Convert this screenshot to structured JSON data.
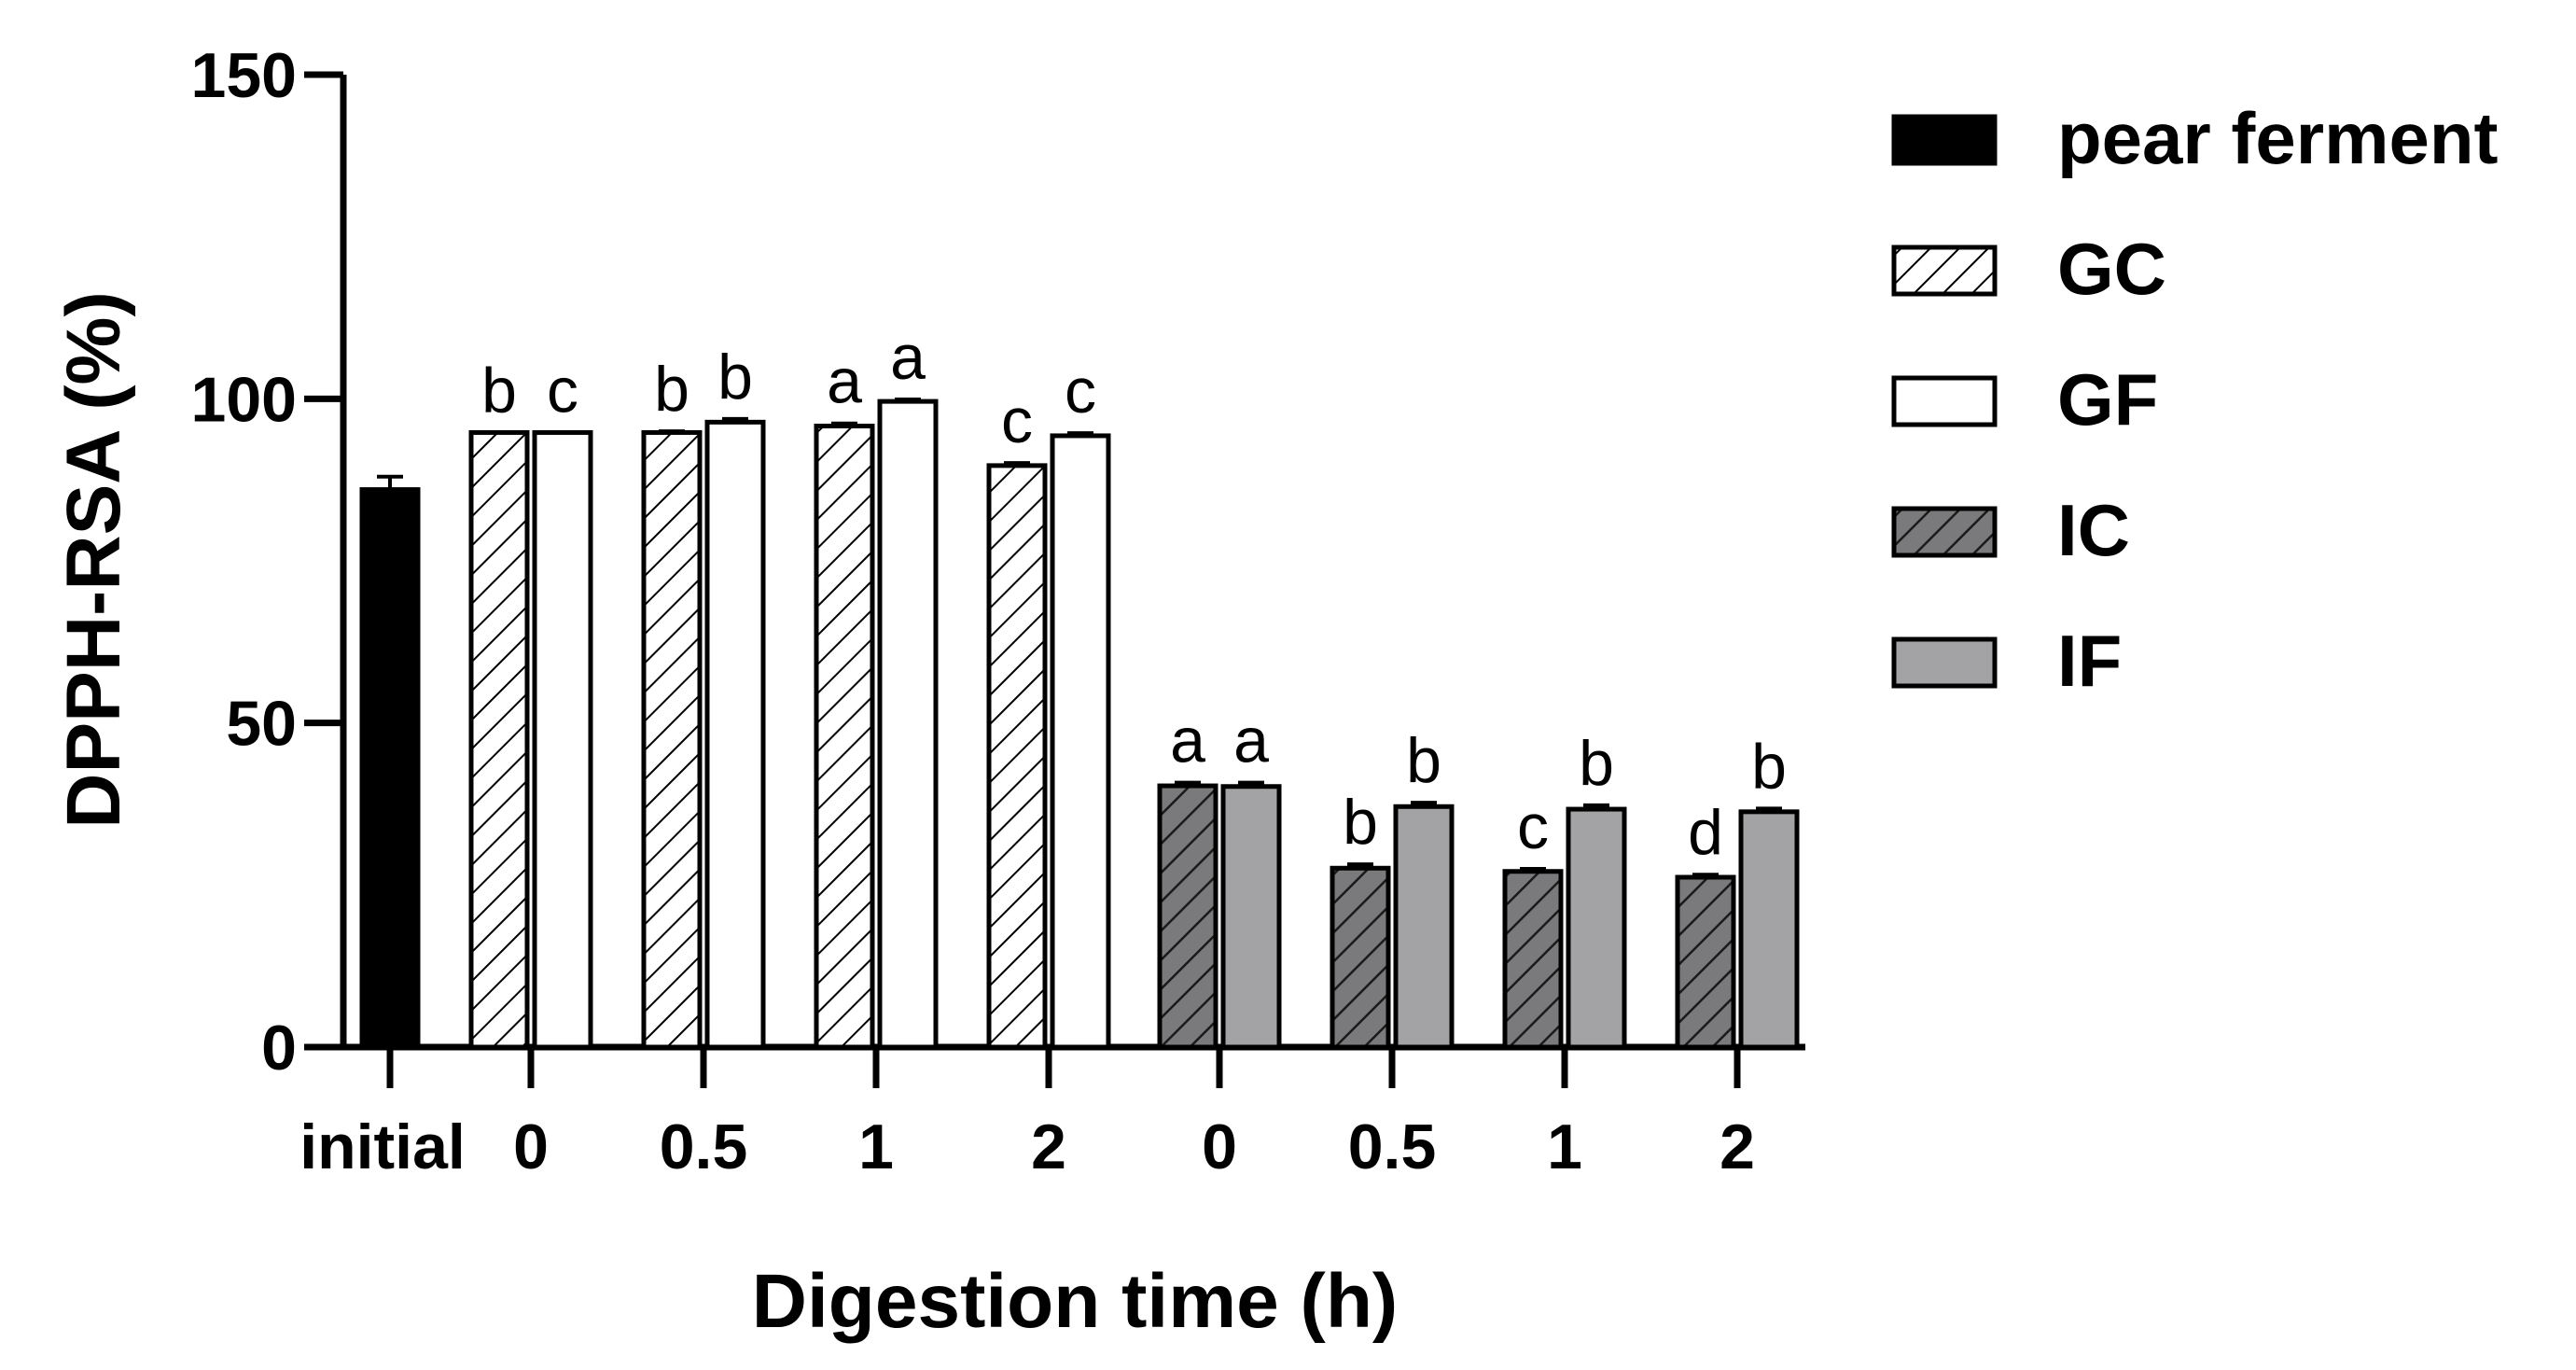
{
  "chart_data": {
    "type": "bar",
    "title": "",
    "xlabel": "Digestion time (h)",
    "ylabel": "DPPH-RSA (%)",
    "ylim": [
      0,
      150
    ],
    "yticks": [
      "0",
      "50",
      "100",
      "150"
    ],
    "categories": [
      "initial",
      "0",
      "0.5",
      "1",
      "2",
      "0",
      "0.5",
      "1",
      "2"
    ],
    "series": [
      {
        "name": "pear ferment",
        "style": "solid-black",
        "values": [
          86,
          null,
          null,
          null,
          null,
          null,
          null,
          null,
          null
        ],
        "errors": [
          2,
          null,
          null,
          null,
          null,
          null,
          null,
          null,
          null
        ],
        "letters": [
          "",
          "",
          "",
          "",
          "",
          "",
          "",
          "",
          ""
        ]
      },
      {
        "name": "GC",
        "style": "hatch-white",
        "values": [
          null,
          94.8,
          94.8,
          95.8,
          89.7,
          null,
          null,
          null,
          null
        ],
        "errors": [
          null,
          0,
          0.2,
          0.4,
          0.4,
          null,
          null,
          null,
          null
        ],
        "letters": [
          "",
          "b",
          "b",
          "a",
          "c",
          "",
          "",
          "",
          ""
        ]
      },
      {
        "name": "GF",
        "style": "plain-white",
        "values": [
          null,
          94.8,
          96.4,
          99.6,
          94.3,
          null,
          null,
          null,
          null
        ],
        "errors": [
          null,
          0,
          0.5,
          0.3,
          0.4,
          null,
          null,
          null,
          null
        ],
        "letters": [
          "",
          "c",
          "b",
          "a",
          "c",
          "",
          "",
          "",
          ""
        ]
      },
      {
        "name": "IC",
        "style": "hatch-gray",
        "values": [
          null,
          null,
          null,
          null,
          null,
          40.3,
          27.6,
          27.1,
          26.2
        ],
        "errors": [
          null,
          null,
          null,
          null,
          null,
          0.5,
          0.6,
          0.4,
          0.4
        ],
        "letters": [
          "",
          "",
          "",
          "",
          "",
          "a",
          "b",
          "c",
          "d"
        ]
      },
      {
        "name": "IF",
        "style": "plain-gray",
        "values": [
          null,
          null,
          null,
          null,
          null,
          40.2,
          37.1,
          36.7,
          36.3
        ],
        "errors": [
          null,
          null,
          null,
          null,
          null,
          0.6,
          0.6,
          0.6,
          0.5
        ],
        "letters": [
          "",
          "",
          "",
          "",
          "",
          "a",
          "b",
          "b",
          "b"
        ]
      }
    ],
    "legend": [
      "pear ferment",
      "GC",
      "GF",
      "IC",
      "IF"
    ],
    "legend_position": "top-right",
    "colors": {
      "black": "#000000",
      "white": "#ffffff",
      "gray": "#a3a3a5",
      "hatch": "#000000"
    }
  }
}
